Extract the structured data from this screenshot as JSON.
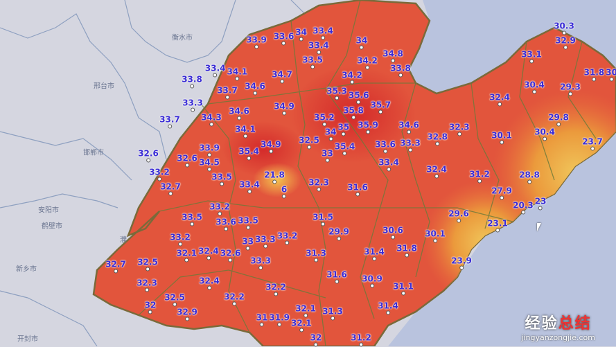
{
  "map": {
    "colors": {
      "land_outside": "#d5d6e0",
      "sea": "#b9c3de",
      "hot": "#d8302c",
      "warm": "#e2573d",
      "mild": "#eb8a3a",
      "cool": "#edb44a",
      "boundary": "#6b7a3a",
      "value_text": "#3a2cd6"
    },
    "region_labels": [
      "衡水市",
      "邢台市",
      "邯郸市",
      "安阳市",
      "鹤壁市",
      "新乡市",
      "开封市",
      "濮"
    ],
    "stations": [
      "33.9",
      "33.6",
      "34",
      "33.4",
      "33.4",
      "33.5",
      "34",
      "34.8",
      "34.2",
      "33.8",
      "34.2",
      "33.4",
      "34.1",
      "33.8",
      "33.7",
      "34.6",
      "34.7",
      "33.3",
      "34.3",
      "34.6",
      "34.9",
      "33.7",
      "34.1",
      "35.4",
      "34.9",
      "32.6",
      "32.6",
      "33.9",
      "34.5",
      "33.5",
      "33.2",
      "32.7",
      "21.8",
      "6",
      "35.3",
      "35.6",
      "35.7",
      "35.8",
      "35.9",
      "35.2",
      "35",
      "34",
      "35.4",
      "33",
      "32.5",
      "34.6",
      "33.6",
      "33.3",
      "32.8",
      "32.3",
      "33.4",
      "32.4",
      "31.2",
      "32.3",
      "31.6",
      "33.4",
      "30.3",
      "32.9",
      "33.1",
      "31.8",
      "30",
      "32.4",
      "30.4",
      "29.3",
      "30.1",
      "30.4",
      "29.8",
      "23.7",
      "28.8",
      "27.9",
      "20.3",
      "23",
      "29.6",
      "23.1",
      "30.1",
      "23.9",
      "33.2",
      "33.5",
      "33.6",
      "33.5",
      "33.2",
      "33",
      "33.3",
      "33.2",
      "32.7",
      "32.5",
      "32.1",
      "32.4",
      "32.6",
      "33.3",
      "32.3",
      "32.4",
      "32",
      "32.5",
      "32.9",
      "32.2",
      "32.2",
      "31",
      "31.9",
      "32.1",
      "32.1",
      "32",
      "31.2",
      "31.3",
      "31.4",
      "31.1",
      "30.9",
      "31.6",
      "31.3",
      "31.4",
      "31.8",
      "30.6",
      "29.9",
      "31.5"
    ]
  },
  "watermark": {
    "text_a": "经验",
    "text_b": "总结",
    "url": "jingyanzongjie.com"
  }
}
